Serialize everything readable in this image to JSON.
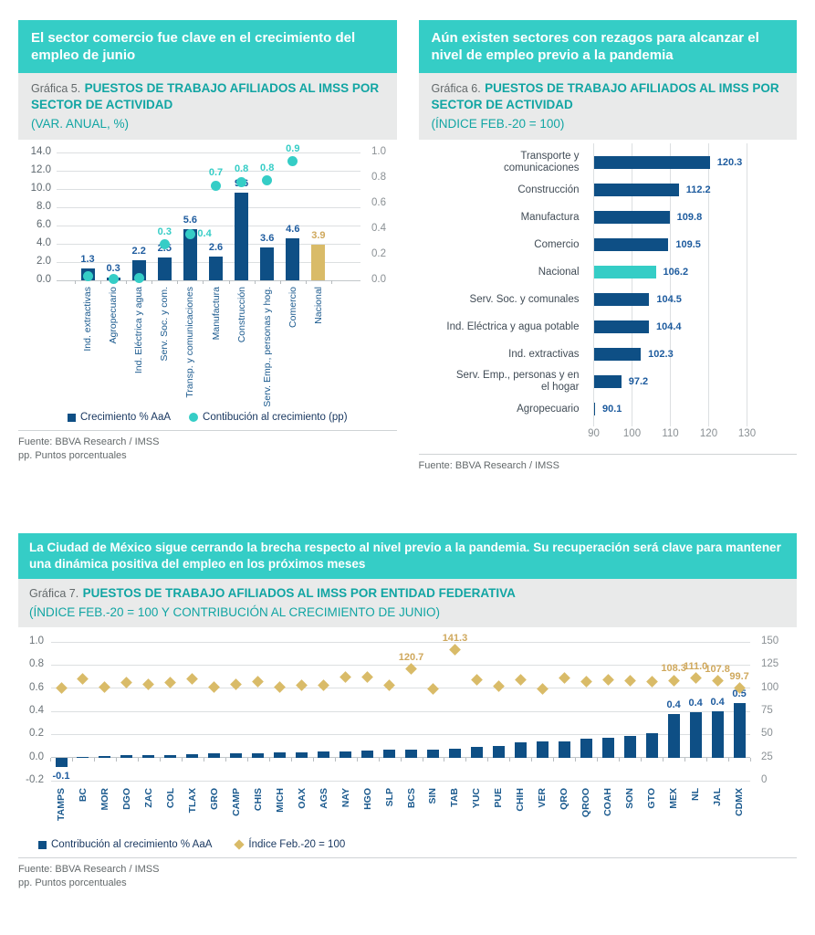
{
  "colors": {
    "teal_band": "#35cdc6",
    "teal_title_text": "#11a5a3",
    "navy_bar": "#0e4f85",
    "teal_dot": "#35cdc6",
    "gold_bar": "#d9bb68",
    "gold_text": "#cfa85c",
    "value_label_blue": "#1d5b9e",
    "category_navy": "#1b5a8e",
    "gray_band": "#e9eaea",
    "grid_gray": "#dcdfe1"
  },
  "grafica5": {
    "headline": "El sector comercio fue clave en el crecimiento del empleo de junio",
    "title_prefix": "Gráfica 5.",
    "title_main": "PUESTOS DE TRABAJO AFILIADOS AL IMSS POR SECTOR DE ACTIVIDAD",
    "title_units": "(VAR. ANUAL, %)",
    "legend_bars": "Crecimiento % AaA",
    "legend_dots": "Contibución al crecimiento (pp)",
    "source": "Fuente: BBVA Research / IMSS",
    "note": "pp. Puntos porcentuales"
  },
  "grafica6": {
    "headline": "Aún existen sectores con rezagos para alcanzar el nivel de empleo previo a la pandemia",
    "title_prefix": "Gráfica 6.",
    "title_main": "PUESTOS DE TRABAJO AFILIADOS AL IMSS POR SECTOR DE ACTIVIDAD",
    "title_units": "(ÍNDICE FEB.-20 = 100)",
    "source": "Fuente: BBVA Research / IMSS"
  },
  "grafica7": {
    "headline": "La Ciudad de México sigue cerrando la brecha respecto al nivel previo a la pandemia. Su recuperación será clave para mantener una dinámica positiva del empleo en los próximos meses",
    "title_prefix": "Gráfica 7.",
    "title_main": "PUESTOS DE TRABAJO AFILIADOS AL IMSS POR ENTIDAD FEDERATIVA",
    "title_units": "(ÍNDICE FEB.-20 = 100 Y CONTRIBUCIÓN AL CRECIMIENTO DE JUNIO)",
    "legend_bars": "Contribución al crecimiento % AaA",
    "legend_diamonds": "Índice Feb.-20 = 100",
    "source": "Fuente: BBVA Research / IMSS",
    "note": "pp. Puntos porcentuales"
  },
  "chart_data": [
    {
      "id": "chart5",
      "type": "bar",
      "subtype": "vertical bars + scatter dots, dual axis",
      "title": "Puestos de trabajo afiliados al IMSS por sector de actividad (var. anual, %)",
      "categories": [
        "Ind. extractivas",
        "Agropecuario",
        "Ind. Eléctrica y agua",
        "Serv. Soc. y com.",
        "Transp. y comunicaciones",
        "Manufactura",
        "Construcción",
        "Serv. Emp., personas y hog.",
        "Comercio",
        "Nacional"
      ],
      "series": [
        {
          "name": "Crecimiento % AaA",
          "type": "bar",
          "axis": "left",
          "values": [
            1.3,
            0.3,
            2.2,
            2.5,
            5.6,
            2.6,
            9.6,
            3.6,
            4.6,
            3.9
          ],
          "labels": [
            "1.3",
            "0.3",
            "2.2",
            "2.5",
            "5.6",
            "2.6",
            "9.6",
            "3.6",
            "4.6",
            "3.9"
          ]
        },
        {
          "name": "Contibución al crecimiento (pp)",
          "type": "scatter",
          "axis": "right",
          "values": [
            0.03,
            0.01,
            0.02,
            0.28,
            0.36,
            0.74,
            0.77,
            0.78,
            0.93,
            null
          ],
          "labels": [
            null,
            null,
            null,
            "0.3",
            "0.4",
            "0.7",
            "0.8",
            "0.8",
            "0.9",
            null
          ]
        }
      ],
      "left_axis": {
        "min": 0,
        "max": 14,
        "ticks": [
          "0.0",
          "2.0",
          "4.0",
          "6.0",
          "8.0",
          "10.0",
          "12.0",
          "14.0"
        ]
      },
      "right_axis": {
        "min": 0,
        "max": 1.0,
        "ticks": [
          "0.0",
          "0.2",
          "0.4",
          "0.6",
          "0.8",
          "1.0"
        ]
      },
      "grid": true,
      "legend_position": "bottom"
    },
    {
      "id": "chart6",
      "type": "bar",
      "subtype": "horizontal bars",
      "title": "Puestos de trabajo afiliados al IMSS por sector de actividad (índice feb.-20 = 100)",
      "categories": [
        "Transporte y\ncomunicaciones",
        "Construcción",
        "Manufactura",
        "Comercio",
        "Nacional",
        "Serv. Soc. y comunales",
        "Ind. Eléctrica y agua potable",
        "Ind. extractivas",
        "Serv. Emp., personas y en\nel hogar",
        "Agropecuario"
      ],
      "values": [
        120.3,
        112.2,
        109.8,
        109.5,
        106.2,
        104.5,
        104.4,
        102.3,
        97.2,
        90.1
      ],
      "labels": [
        "120.3",
        "112.2",
        "109.8",
        "109.5",
        "106.2",
        "104.5",
        "104.4",
        "102.3",
        "97.2",
        "90.1"
      ],
      "highlight_index": 4,
      "x_axis": {
        "min": 90,
        "max": 130,
        "ticks": [
          "90",
          "100",
          "110",
          "120",
          "130"
        ]
      },
      "grid": true
    },
    {
      "id": "chart7",
      "type": "bar",
      "subtype": "vertical bars + diamond markers, dual axis",
      "title": "Puestos de trabajo afiliados al IMSS por entidad federativa (índice feb.-20 = 100 y contribución al crecimiento de junio)",
      "categories": [
        "TAMPS",
        "BC",
        "MOR",
        "DGO",
        "ZAC",
        "COL",
        "TLAX",
        "GRO",
        "CAMP",
        "CHIS",
        "MICH",
        "OAX",
        "AGS",
        "NAY",
        "HGO",
        "SLP",
        "BCS",
        "SIN",
        "TAB",
        "YUC",
        "PUE",
        "CHIH",
        "VER",
        "QRO",
        "QROO",
        "COAH",
        "SON",
        "GTO",
        "MEX",
        "NL",
        "JAL",
        "CDMX"
      ],
      "series": [
        {
          "name": "Contribución al crecimiento % AaA",
          "type": "bar",
          "axis": "left",
          "values": [
            -0.08,
            0.005,
            0.015,
            0.02,
            0.02,
            0.025,
            0.03,
            0.035,
            0.035,
            0.04,
            0.045,
            0.045,
            0.05,
            0.05,
            0.06,
            0.07,
            0.07,
            0.07,
            0.08,
            0.09,
            0.1,
            0.13,
            0.14,
            0.14,
            0.16,
            0.17,
            0.19,
            0.21,
            0.38,
            0.39,
            0.4,
            0.47
          ],
          "labels": [
            "-0.1",
            null,
            null,
            null,
            null,
            null,
            null,
            null,
            null,
            null,
            null,
            null,
            null,
            null,
            null,
            null,
            null,
            null,
            null,
            null,
            null,
            null,
            null,
            null,
            null,
            null,
            null,
            null,
            "0.4",
            "0.4",
            "0.4",
            "0.5"
          ]
        },
        {
          "name": "Índice Feb.-20 = 100",
          "type": "scatter",
          "axis": "right",
          "values": [
            100,
            110,
            101,
            106,
            104,
            106,
            110,
            101,
            104,
            107,
            101,
            103,
            103,
            112,
            112,
            103,
            120.7,
            99,
            141.3,
            109,
            102,
            109,
            99,
            111,
            107,
            109,
            108,
            107,
            108.3,
            111,
            107.8,
            99.7
          ],
          "labels": [
            null,
            null,
            null,
            null,
            null,
            null,
            null,
            null,
            null,
            null,
            null,
            null,
            null,
            null,
            null,
            null,
            "120.7",
            null,
            "141.3",
            null,
            null,
            null,
            null,
            null,
            null,
            null,
            null,
            null,
            "108.3",
            "111.0",
            "107.8",
            "99.7"
          ]
        }
      ],
      "left_axis": {
        "min": -0.2,
        "max": 1.0,
        "ticks": [
          "-0.2",
          "0.0",
          "0.2",
          "0.4",
          "0.6",
          "0.8",
          "1.0"
        ]
      },
      "right_axis": {
        "min": 0,
        "max": 150,
        "ticks": [
          "0",
          "25",
          "50",
          "75",
          "100",
          "125",
          "150"
        ]
      },
      "grid": true,
      "legend_position": "bottom-left"
    }
  ]
}
